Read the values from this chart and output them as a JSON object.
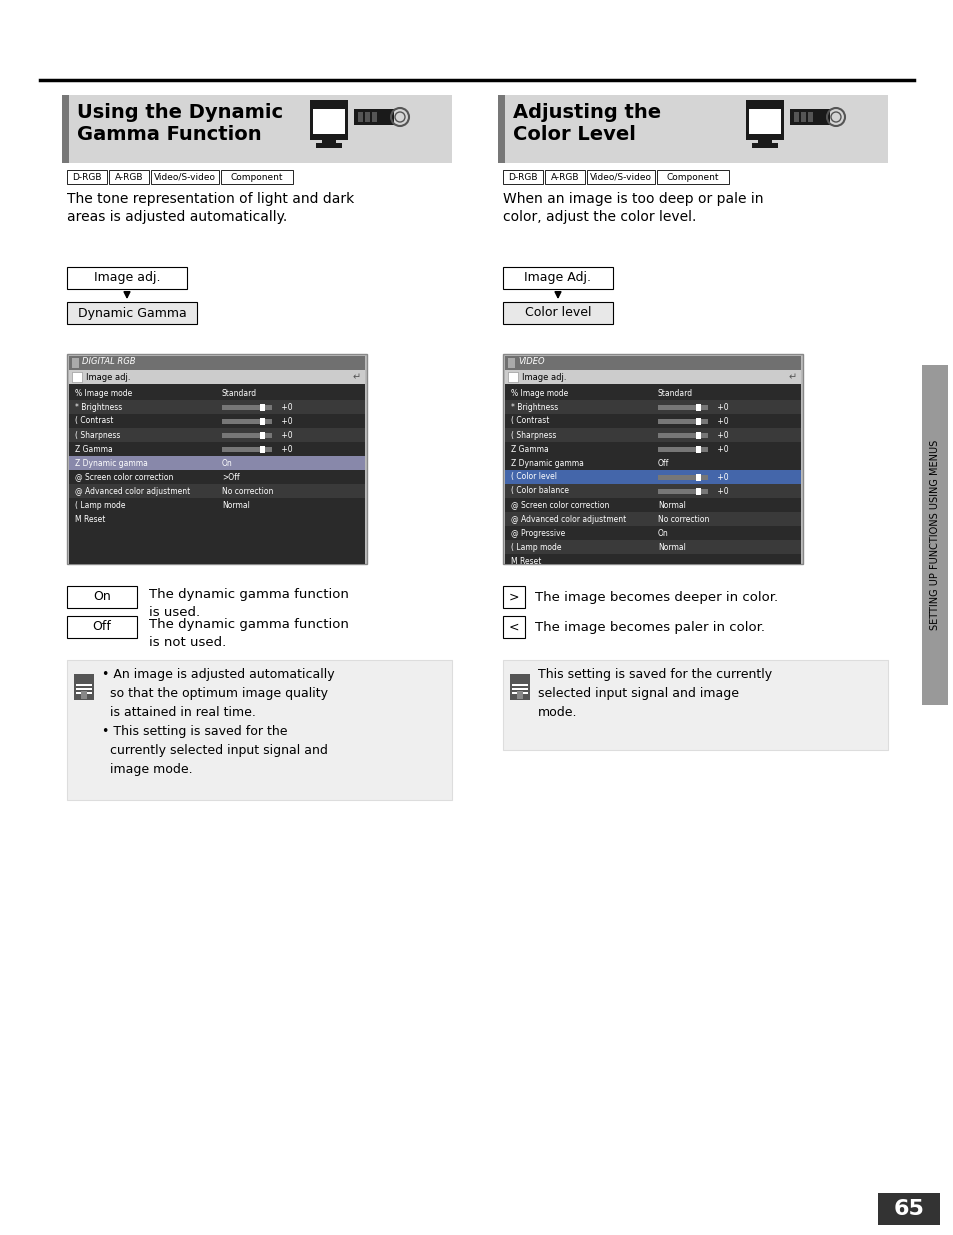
{
  "bg_color": "#ffffff",
  "left_title_line1": "Using the Dynamic",
  "left_title_line2": "Gamma Function",
  "right_title_line1": "Adjusting the",
  "right_title_line2": "Color Level",
  "tag_labels": [
    "D-RGB",
    "A-RGB",
    "Video/S-video",
    "Component"
  ],
  "left_desc_line1": "The tone representation of light and dark",
  "left_desc_line2": "areas is adjusted automatically.",
  "right_desc_line1": "When an image is too deep or pale in",
  "right_desc_line2": "color, adjust the color level.",
  "left_flow1": "Image adj.",
  "left_flow2": "Dynamic Gamma",
  "right_flow1": "Image Adj.",
  "right_flow2": "Color level",
  "left_screen_title": "DIGITAL RGB",
  "right_screen_title": "VIDEO",
  "on_label": "On",
  "off_label": "Off",
  "on_desc": "The dynamic gamma function\nis used.",
  "off_desc": "The dynamic gamma function\nis not used.",
  "gt_desc": "The image becomes deeper in color.",
  "lt_desc": "The image becomes paler in color.",
  "note_left_text": "• An image is adjusted automatically\n  so that the optimum image quality\n  is attained in real time.\n• This setting is saved for the\n  currently selected input signal and\n  image mode.",
  "note_right_text": "This setting is saved for the currently\nselected input signal and image\nmode.",
  "sidebar_text": "SETTING UP FUNCTIONS USING MENUS",
  "page_num": "65",
  "header_bg": "#d5d5d5",
  "section_bar": "#777777",
  "note_bg": "#efefef",
  "screen_outer": "#b0b0b0",
  "screen_title_bg": "#808080",
  "screen_toolbar_bg": "#d0d0d0",
  "screen_content_bg": "#2a2a2a",
  "screen_row_dark": "#1a1a1a",
  "screen_row_light": "#383838",
  "screen_row_highlight": "#888888",
  "screen_row_selected": "#6688cc",
  "sidebar_bg": "#999999",
  "pageno_bg": "#333333"
}
